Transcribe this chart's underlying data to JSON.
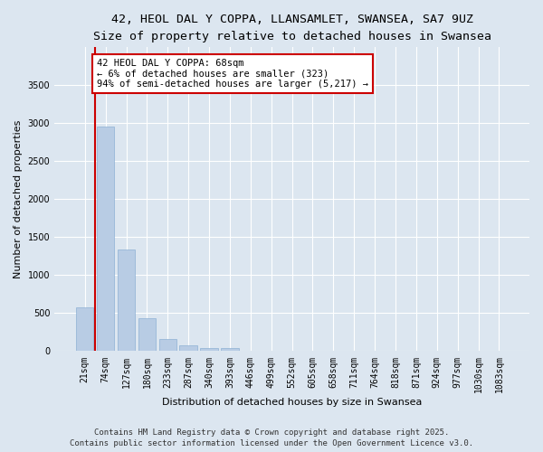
{
  "title_line1": "42, HEOL DAL Y COPPA, LLANSAMLET, SWANSEA, SA7 9UZ",
  "title_line2": "Size of property relative to detached houses in Swansea",
  "xlabel": "Distribution of detached houses by size in Swansea",
  "ylabel": "Number of detached properties",
  "categories": [
    "21sqm",
    "74sqm",
    "127sqm",
    "180sqm",
    "233sqm",
    "287sqm",
    "340sqm",
    "393sqm",
    "446sqm",
    "499sqm",
    "552sqm",
    "605sqm",
    "658sqm",
    "711sqm",
    "764sqm",
    "818sqm",
    "871sqm",
    "924sqm",
    "977sqm",
    "1030sqm",
    "1083sqm"
  ],
  "values": [
    580,
    2960,
    1340,
    430,
    155,
    75,
    45,
    40,
    0,
    0,
    0,
    0,
    0,
    0,
    0,
    0,
    0,
    0,
    0,
    0,
    0
  ],
  "bar_color": "#b8cce4",
  "bar_edge_color": "#8eb0d4",
  "background_color": "#dce6f0",
  "plot_bg_color": "#dce6f0",
  "grid_color": "#ffffff",
  "annotation_text": "42 HEOL DAL Y COPPA: 68sqm\n← 6% of detached houses are smaller (323)\n94% of semi-detached houses are larger (5,217) →",
  "annotation_box_color": "#ffffff",
  "annotation_box_edge": "#cc0000",
  "vline_x": 0.5,
  "ylim": [
    0,
    4000
  ],
  "yticks": [
    0,
    500,
    1000,
    1500,
    2000,
    2500,
    3000,
    3500
  ],
  "footer_line1": "Contains HM Land Registry data © Crown copyright and database right 2025.",
  "footer_line2": "Contains public sector information licensed under the Open Government Licence v3.0.",
  "title_fontsize": 9.5,
  "subtitle_fontsize": 8.5,
  "axis_label_fontsize": 8,
  "tick_fontsize": 7,
  "annotation_fontsize": 7.5,
  "footer_fontsize": 6.5
}
